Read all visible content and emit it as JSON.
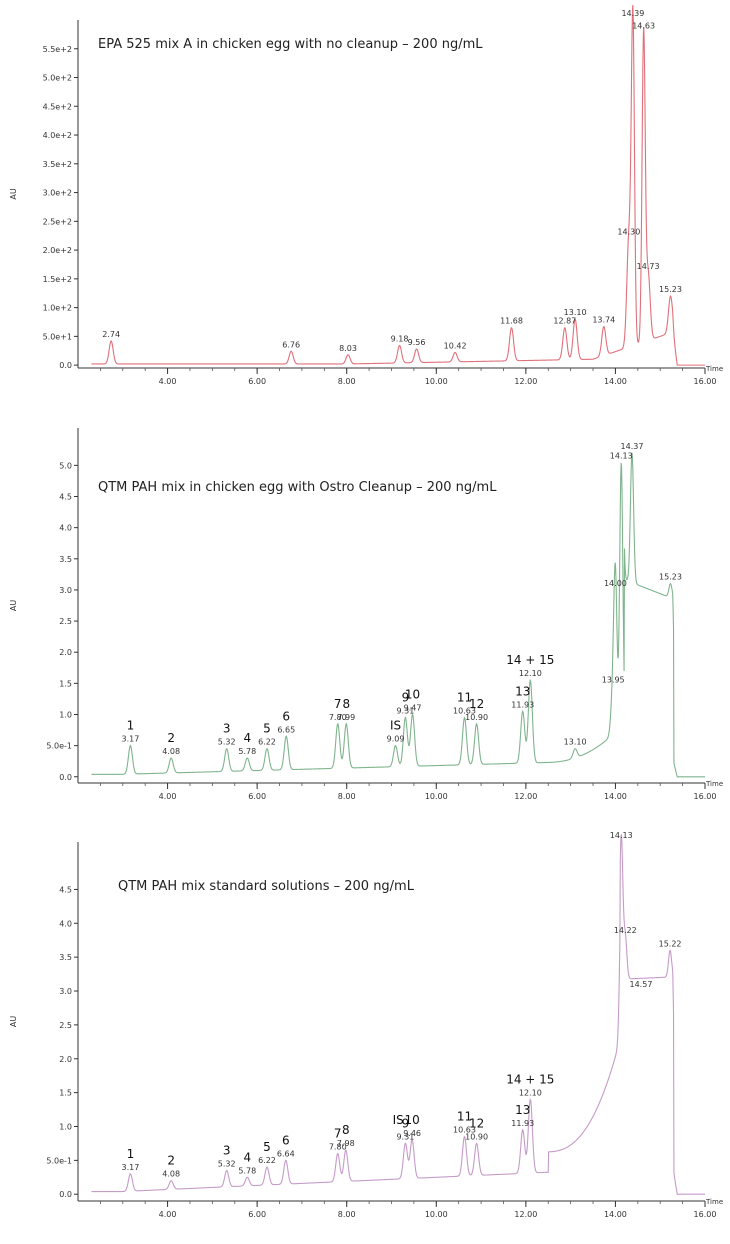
{
  "chart_data": [
    {
      "type": "line",
      "title": "EPA 525 mix A in chicken egg with no cleanup – 200 ng/mL",
      "ylabel": "AU",
      "xlabel": "Time",
      "color": "#e0707a",
      "xlim": [
        2.0,
        16.0
      ],
      "ylim": [
        -5,
        600
      ],
      "yticks": [
        {
          "label": "0.0",
          "value": 0
        },
        {
          "label": "5.0e+1",
          "value": 50
        },
        {
          "label": "1.0e+2",
          "value": 100
        },
        {
          "label": "1.5e+2",
          "value": 150
        },
        {
          "label": "2.0e+2",
          "value": 200
        },
        {
          "label": "2.5e+2",
          "value": 250
        },
        {
          "label": "3.0e+2",
          "value": 300
        },
        {
          "label": "3.5e+2",
          "value": 350
        },
        {
          "label": "4.0e+2",
          "value": 400
        },
        {
          "label": "4.5e+2",
          "value": 450
        },
        {
          "label": "5.0e+2",
          "value": 500
        },
        {
          "label": "5.5e+2",
          "value": 550
        }
      ],
      "xticks": [
        "4.00",
        "6.00",
        "8.00",
        "10.00",
        "12.00",
        "14.00",
        "16.00"
      ],
      "peaks": [
        {
          "t": 2.74,
          "h": 42,
          "label": "2.74"
        },
        {
          "t": 6.76,
          "h": 24,
          "label": "6.76"
        },
        {
          "t": 8.03,
          "h": 18,
          "label": "8.03"
        },
        {
          "t": 9.18,
          "h": 34,
          "label": "9.18"
        },
        {
          "t": 9.56,
          "h": 28,
          "label": "9.56"
        },
        {
          "t": 10.42,
          "h": 22,
          "label": "10.42"
        },
        {
          "t": 11.68,
          "h": 65,
          "label": "11.68"
        },
        {
          "t": 12.87,
          "h": 65,
          "label": "12.87"
        },
        {
          "t": 13.1,
          "h": 80,
          "label": "13.10"
        },
        {
          "t": 13.74,
          "h": 67,
          "label": "13.74"
        },
        {
          "t": 14.3,
          "h": 220,
          "label": "14.30"
        },
        {
          "t": 14.39,
          "h": 600,
          "label": "14.39"
        },
        {
          "t": 14.63,
          "h": 578,
          "label": "14.63"
        },
        {
          "t": 14.73,
          "h": 160,
          "label": "14.73"
        },
        {
          "t": 15.23,
          "h": 120,
          "label": "15.23"
        }
      ],
      "annotations": []
    },
    {
      "type": "line",
      "title": "QTM PAH mix in chicken egg with Ostro Cleanup – 200 ng/mL",
      "ylabel": "AU",
      "xlabel": "Time",
      "color": "#7fb48d",
      "xlim": [
        2.0,
        16.0
      ],
      "ylim": [
        -0.1,
        5.6
      ],
      "yticks": [
        {
          "label": "0.0",
          "value": 0
        },
        {
          "label": "5.0e-1",
          "value": 0.5
        },
        {
          "label": "1.0",
          "value": 1.0
        },
        {
          "label": "1.5",
          "value": 1.5
        },
        {
          "label": "2.0",
          "value": 2.0
        },
        {
          "label": "2.5",
          "value": 2.5
        },
        {
          "label": "3.0",
          "value": 3.0
        },
        {
          "label": "3.5",
          "value": 3.5
        },
        {
          "label": "4.0",
          "value": 4.0
        },
        {
          "label": "4.5",
          "value": 4.5
        },
        {
          "label": "5.0",
          "value": 5.0
        }
      ],
      "xticks": [
        "4.00",
        "6.00",
        "8.00",
        "10.00",
        "12.00",
        "14.00",
        "16.00"
      ],
      "peaks": [
        {
          "t": 3.17,
          "h": 0.5,
          "label": "3.17"
        },
        {
          "t": 4.08,
          "h": 0.3,
          "label": "4.08"
        },
        {
          "t": 5.32,
          "h": 0.45,
          "label": "5.32"
        },
        {
          "t": 5.78,
          "h": 0.3,
          "label": "5.78"
        },
        {
          "t": 6.22,
          "h": 0.45,
          "label": "6.22"
        },
        {
          "t": 6.65,
          "h": 0.65,
          "label": "6.65"
        },
        {
          "t": 7.8,
          "h": 0.85,
          "label": "7.80"
        },
        {
          "t": 7.99,
          "h": 0.85,
          "label": "7.99"
        },
        {
          "t": 9.09,
          "h": 0.5,
          "label": "9.09"
        },
        {
          "t": 9.31,
          "h": 0.95,
          "label": "9.31"
        },
        {
          "t": 9.47,
          "h": 1.0,
          "label": "9.47"
        },
        {
          "t": 10.63,
          "h": 0.95,
          "label": "10.63"
        },
        {
          "t": 10.9,
          "h": 0.85,
          "label": "10.90"
        },
        {
          "t": 11.93,
          "h": 1.05,
          "label": "11.93"
        },
        {
          "t": 12.1,
          "h": 1.55,
          "label": "12.10"
        },
        {
          "t": 13.1,
          "h": 0.45,
          "label": "13.10"
        },
        {
          "t": 13.95,
          "h": 1.45,
          "label": "13.95"
        },
        {
          "t": 14.0,
          "h": 3.0,
          "label": "14.00"
        },
        {
          "t": 14.13,
          "h": 5.05,
          "label": "14.13"
        },
        {
          "t": 14.37,
          "h": 5.2,
          "label": "14.37"
        },
        {
          "t": 15.23,
          "h": 3.1,
          "label": "15.23"
        }
      ],
      "annotations": [
        {
          "text": "1",
          "t": 3.17
        },
        {
          "text": "2",
          "t": 4.08
        },
        {
          "text": "3",
          "t": 5.32
        },
        {
          "text": "4",
          "t": 5.78
        },
        {
          "text": "5",
          "t": 6.22
        },
        {
          "text": "6",
          "t": 6.65
        },
        {
          "text": "7",
          "t": 7.8
        },
        {
          "text": "8",
          "t": 7.99
        },
        {
          "text": "IS",
          "t": 9.09
        },
        {
          "text": "9",
          "t": 9.31
        },
        {
          "text": "10",
          "t": 9.47
        },
        {
          "text": "11",
          "t": 10.63
        },
        {
          "text": "12",
          "t": 10.9
        },
        {
          "text": "13",
          "t": 11.93
        },
        {
          "text": "14 + 15",
          "t": 12.1
        }
      ]
    },
    {
      "type": "line",
      "title": "QTM PAH mix standard solutions – 200 ng/mL",
      "ylabel": "AU",
      "xlabel": "Time",
      "color": "#c59bc8",
      "xlim": [
        2.0,
        16.0
      ],
      "ylim": [
        -0.1,
        5.2
      ],
      "yticks": [
        {
          "label": "0.0",
          "value": 0
        },
        {
          "label": "5.0e-1",
          "value": 0.5
        },
        {
          "label": "1.0",
          "value": 1.0
        },
        {
          "label": "1.5",
          "value": 1.5
        },
        {
          "label": "2.0",
          "value": 2.0
        },
        {
          "label": "2.5",
          "value": 2.5
        },
        {
          "label": "3.0",
          "value": 3.0
        },
        {
          "label": "3.5",
          "value": 3.5
        },
        {
          "label": "4.0",
          "value": 4.0
        },
        {
          "label": "4.5",
          "value": 4.5
        }
      ],
      "xticks": [
        "4.00",
        "6.00",
        "8.00",
        "10.00",
        "12.00",
        "14.00",
        "16.00"
      ],
      "peaks": [
        {
          "t": 3.17,
          "h": 0.3,
          "label": "3.17"
        },
        {
          "t": 4.08,
          "h": 0.2,
          "label": "4.08"
        },
        {
          "t": 5.32,
          "h": 0.35,
          "label": "5.32"
        },
        {
          "t": 5.78,
          "h": 0.25,
          "label": "5.78"
        },
        {
          "t": 6.22,
          "h": 0.4,
          "label": "6.22"
        },
        {
          "t": 6.64,
          "h": 0.5,
          "label": "6.64"
        },
        {
          "t": 7.8,
          "h": 0.6,
          "label": "7.80"
        },
        {
          "t": 7.98,
          "h": 0.65,
          "label": "7.98"
        },
        {
          "t": 9.31,
          "h": 0.75,
          "label": "9.31"
        },
        {
          "t": 9.46,
          "h": 0.8,
          "label": "9.46"
        },
        {
          "t": 10.63,
          "h": 0.85,
          "label": "10.63"
        },
        {
          "t": 10.9,
          "h": 0.75,
          "label": "10.90"
        },
        {
          "t": 11.93,
          "h": 0.95,
          "label": "11.93"
        },
        {
          "t": 12.1,
          "h": 1.4,
          "label": "12.10"
        },
        {
          "t": 14.13,
          "h": 5.3,
          "label": "14.13"
        },
        {
          "t": 14.22,
          "h": 3.8,
          "label": "14.22"
        },
        {
          "t": 14.57,
          "h": 3.0,
          "label": "14.57"
        },
        {
          "t": 15.22,
          "h": 3.6,
          "label": "15.22"
        }
      ],
      "annotations": [
        {
          "text": "1",
          "t": 3.17
        },
        {
          "text": "2",
          "t": 4.08
        },
        {
          "text": "3",
          "t": 5.32
        },
        {
          "text": "4",
          "t": 5.78
        },
        {
          "text": "5",
          "t": 6.22
        },
        {
          "text": "6",
          "t": 6.64
        },
        {
          "text": "7",
          "t": 7.8
        },
        {
          "text": "8",
          "t": 7.98
        },
        {
          "text": "IS",
          "t": 9.15
        },
        {
          "text": "9",
          "t": 9.31
        },
        {
          "text": "10",
          "t": 9.46
        },
        {
          "text": "11",
          "t": 10.63
        },
        {
          "text": "12",
          "t": 10.9
        },
        {
          "text": "13",
          "t": 11.93
        },
        {
          "text": "14 + 15",
          "t": 12.1
        }
      ]
    }
  ]
}
